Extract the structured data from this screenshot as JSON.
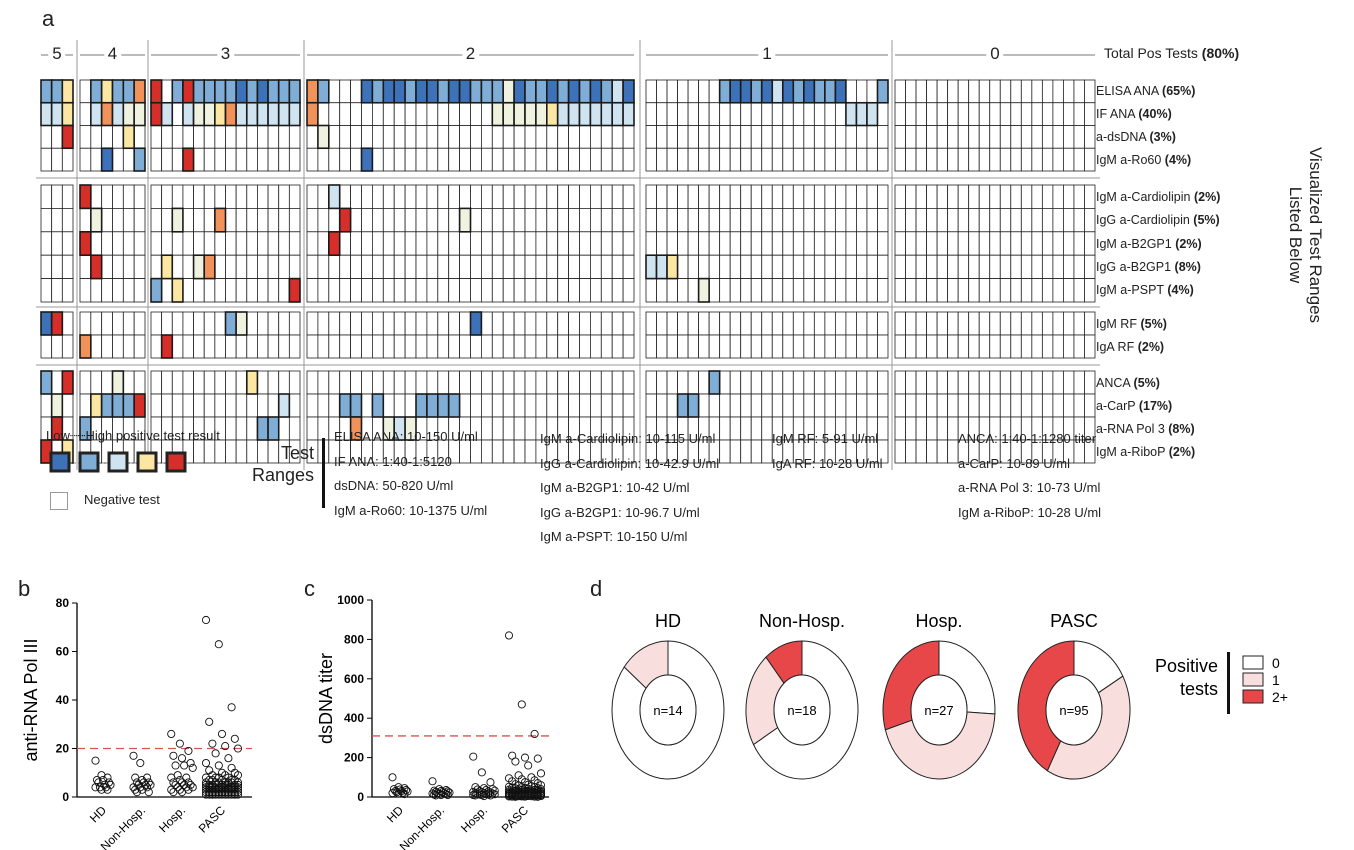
{
  "panel_labels": {
    "a": "a",
    "b": "b",
    "c": "c",
    "d": "d"
  },
  "heatmap": {
    "group_labels": [
      "5",
      "4",
      "3",
      "2",
      "1",
      "0"
    ],
    "total_label": "Total Pos Tests",
    "total_pct": "(80%)",
    "side_title_1": "Visualized Test Ranges",
    "side_title_2": "Listed Below",
    "rows": [
      {
        "name": "ELISA ANA",
        "pct": "(65%)"
      },
      {
        "name": "IF ANA",
        "pct": "(40%)"
      },
      {
        "name": "a-dsDNA",
        "pct": "(3%)"
      },
      {
        "name": "IgM a-Ro60",
        "pct": "(4%)"
      },
      {
        "name": "IgM a-Cardiolipin",
        "pct": "(2%)"
      },
      {
        "name": "IgG a-Cardiolipin",
        "pct": "(5%)"
      },
      {
        "name": "IgM a-B2GP1",
        "pct": "(2%)"
      },
      {
        "name": "IgG a-B2GP1",
        "pct": "(8%)"
      },
      {
        "name": "IgM a-PSPT",
        "pct": "(4%)"
      },
      {
        "name": "IgM RF",
        "pct": "(5%)"
      },
      {
        "name": "IgA RF",
        "pct": "(2%)"
      },
      {
        "name": "ANCA",
        "pct": "(5%)"
      },
      {
        "name": "a-CarP",
        "pct": "(17%)"
      },
      {
        "name": "a-RNA Pol 3",
        "pct": "(8%)"
      },
      {
        "name": "IgM a-RiboP",
        "pct": "(2%)"
      }
    ],
    "group_columns": [
      3,
      6,
      14,
      30,
      23,
      19
    ],
    "level_colors": {
      "1": "#3d72b8",
      "2": "#7fadd6",
      "3": "#cfe3f1",
      "3.5": "#eef2df",
      "4": "#fbe7a1",
      "4.5": "#f0925a",
      "5": "#d62f2a"
    },
    "cells": [
      [
        0,
        0,
        2
      ],
      [
        0,
        1,
        2
      ],
      [
        0,
        2,
        4
      ],
      [
        0,
        4,
        2
      ],
      [
        0,
        5,
        4
      ],
      [
        0,
        6,
        2
      ],
      [
        0,
        7,
        2
      ],
      [
        0,
        8,
        4.5
      ],
      [
        0,
        9,
        5
      ],
      [
        0,
        11,
        2
      ],
      [
        0,
        12,
        5
      ],
      [
        0,
        13,
        2
      ],
      [
        0,
        14,
        2
      ],
      [
        0,
        15,
        2
      ],
      [
        0,
        16,
        2
      ],
      [
        0,
        17,
        1
      ],
      [
        0,
        18,
        2
      ],
      [
        0,
        19,
        1
      ],
      [
        0,
        20,
        2
      ],
      [
        0,
        21,
        2
      ],
      [
        0,
        22,
        2
      ],
      [
        0,
        23,
        4.5
      ],
      [
        0,
        24,
        2
      ],
      [
        0,
        28,
        1
      ],
      [
        0,
        29,
        2
      ],
      [
        0,
        30,
        1
      ],
      [
        0,
        31,
        1
      ],
      [
        0,
        32,
        2
      ],
      [
        0,
        33,
        1
      ],
      [
        0,
        34,
        1
      ],
      [
        0,
        35,
        2
      ],
      [
        0,
        36,
        1
      ],
      [
        0,
        37,
        1
      ],
      [
        0,
        38,
        2
      ],
      [
        0,
        39,
        2
      ],
      [
        0,
        40,
        2
      ],
      [
        0,
        41,
        3.5
      ],
      [
        0,
        42,
        1
      ],
      [
        0,
        43,
        2
      ],
      [
        0,
        44,
        2
      ],
      [
        0,
        45,
        1
      ],
      [
        0,
        46,
        2
      ],
      [
        0,
        47,
        1
      ],
      [
        0,
        48,
        2
      ],
      [
        0,
        49,
        1
      ],
      [
        0,
        50,
        2
      ],
      [
        0,
        51,
        3
      ],
      [
        0,
        52,
        1
      ],
      [
        0,
        60,
        2
      ],
      [
        0,
        61,
        1
      ],
      [
        0,
        62,
        1
      ],
      [
        0,
        63,
        2
      ],
      [
        0,
        64,
        1
      ],
      [
        0,
        65,
        3
      ],
      [
        0,
        66,
        1
      ],
      [
        0,
        67,
        2
      ],
      [
        0,
        68,
        1
      ],
      [
        0,
        69,
        2
      ],
      [
        0,
        70,
        2
      ],
      [
        0,
        71,
        1
      ],
      [
        0,
        75,
        2
      ],
      [
        1,
        0,
        3
      ],
      [
        1,
        1,
        3
      ],
      [
        1,
        2,
        4
      ],
      [
        1,
        4,
        3
      ],
      [
        1,
        5,
        4.5
      ],
      [
        1,
        6,
        3
      ],
      [
        1,
        7,
        3.5
      ],
      [
        1,
        8,
        3.5
      ],
      [
        1,
        9,
        5
      ],
      [
        1,
        10,
        3
      ],
      [
        1,
        12,
        3
      ],
      [
        1,
        13,
        3.5
      ],
      [
        1,
        14,
        3.5
      ],
      [
        1,
        15,
        4
      ],
      [
        1,
        16,
        4.5
      ],
      [
        1,
        17,
        3
      ],
      [
        1,
        18,
        3
      ],
      [
        1,
        19,
        3
      ],
      [
        1,
        20,
        3
      ],
      [
        1,
        21,
        3
      ],
      [
        1,
        22,
        3
      ],
      [
        1,
        23,
        4.5
      ],
      [
        1,
        40,
        3.5
      ],
      [
        1,
        41,
        3.5
      ],
      [
        1,
        42,
        3.5
      ],
      [
        1,
        43,
        3.5
      ],
      [
        1,
        44,
        3.5
      ],
      [
        1,
        45,
        4
      ],
      [
        1,
        46,
        3
      ],
      [
        1,
        47,
        3
      ],
      [
        1,
        48,
        3
      ],
      [
        1,
        49,
        3
      ],
      [
        1,
        50,
        3
      ],
      [
        1,
        51,
        3
      ],
      [
        1,
        52,
        3
      ],
      [
        1,
        72,
        3
      ],
      [
        1,
        73,
        3
      ],
      [
        1,
        74,
        3
      ],
      [
        2,
        2,
        5
      ],
      [
        2,
        7,
        4
      ],
      [
        2,
        24,
        3.5
      ],
      [
        3,
        5,
        1
      ],
      [
        3,
        8,
        2
      ],
      [
        3,
        12,
        5
      ],
      [
        3,
        28,
        1
      ],
      [
        4,
        3,
        5
      ],
      [
        4,
        25,
        3
      ],
      [
        5,
        4,
        3.5
      ],
      [
        5,
        11,
        3.5
      ],
      [
        5,
        15,
        4.5
      ],
      [
        5,
        26,
        5
      ],
      [
        5,
        37,
        3.5
      ],
      [
        6,
        3,
        5
      ],
      [
        6,
        25,
        5
      ],
      [
        7,
        4,
        5
      ],
      [
        7,
        10,
        4
      ],
      [
        7,
        13,
        3.5
      ],
      [
        7,
        14,
        4.5
      ],
      [
        7,
        53,
        3
      ],
      [
        7,
        54,
        3
      ],
      [
        7,
        55,
        4
      ],
      [
        8,
        9,
        2
      ],
      [
        8,
        11,
        4
      ],
      [
        8,
        22,
        5
      ],
      [
        8,
        58,
        3.5
      ],
      [
        9,
        0,
        1
      ],
      [
        9,
        1,
        5
      ],
      [
        9,
        16,
        2
      ],
      [
        9,
        17,
        3.5
      ],
      [
        9,
        38,
        1
      ],
      [
        10,
        3,
        4.5
      ],
      [
        10,
        10,
        5
      ],
      [
        11,
        0,
        2
      ],
      [
        11,
        2,
        5
      ],
      [
        11,
        6,
        3.5
      ],
      [
        11,
        18,
        4
      ],
      [
        11,
        59,
        2
      ],
      [
        12,
        1,
        3.5
      ],
      [
        12,
        4,
        4
      ],
      [
        12,
        5,
        2
      ],
      [
        12,
        6,
        2
      ],
      [
        12,
        7,
        2
      ],
      [
        12,
        8,
        5
      ],
      [
        12,
        21,
        3
      ],
      [
        12,
        26,
        2
      ],
      [
        12,
        27,
        2
      ],
      [
        12,
        29,
        2
      ],
      [
        12,
        33,
        2
      ],
      [
        12,
        34,
        2
      ],
      [
        12,
        35,
        2
      ],
      [
        12,
        36,
        2
      ],
      [
        12,
        56,
        2
      ],
      [
        12,
        57,
        2
      ],
      [
        13,
        1,
        5
      ],
      [
        13,
        3,
        2
      ],
      [
        13,
        19,
        2
      ],
      [
        13,
        20,
        2
      ],
      [
        13,
        27,
        4.5
      ],
      [
        13,
        30,
        3.5
      ],
      [
        13,
        31,
        3
      ],
      [
        13,
        32,
        3.5
      ],
      [
        14,
        0,
        5
      ],
      [
        14,
        2,
        4
      ]
    ]
  },
  "legend": {
    "scale_label": "Low┈┈High positive test result",
    "scale_levels": [
      "1",
      "2",
      "3",
      "4",
      "5"
    ],
    "negative_label": "Negative test",
    "ranges_title_1": "Test",
    "ranges_title_2": "Ranges",
    "ranges": [
      [
        "ELISA ANA: 10-150 U/ml",
        "IF ANA: 1:40-1:5120",
        "dsDNA: 50-820 U/ml",
        "IgM a-Ro60: 10-1375 U/ml"
      ],
      [
        "IgM a-Cardiolipin: 10-115 U/ml",
        "IgG a-Cardiolipin: 10-42.9 U/ml",
        "IgM a-B2GP1: 10-42 U/ml",
        "IgG a-B2GP1: 10-96.7 U/ml",
        "IgM a-PSPT: 10-150 U/ml"
      ],
      [
        "IgM RF: 5-91 U/ml",
        "IgA RF: 10-28 U/ml"
      ],
      [
        "ANCA: 1:40-1:1280 titer",
        "a-CarP: 10-89 U/ml",
        "a-RNA Pol 3: 10-73 U/ml",
        "IgM a-RiboP: 10-28 U/ml"
      ]
    ]
  },
  "chart_data": [
    {
      "type": "scatter",
      "panel": "b",
      "ylabel": "anti-RNA Pol III",
      "ylim": [
        0,
        80
      ],
      "yticks": [
        "0",
        "20",
        "40",
        "60",
        "80"
      ],
      "cutoff": 20,
      "cutoff_color": "#d9534f",
      "categories": [
        "HD",
        "Non-Hosp.",
        "Hosp.",
        "PASC"
      ],
      "values": [
        [
          15,
          9,
          8,
          7,
          7,
          6,
          6,
          5,
          5,
          4,
          4,
          4,
          3,
          3
        ],
        [
          17,
          14,
          8,
          8,
          7,
          6,
          6,
          6,
          5,
          5,
          5,
          4,
          4,
          4,
          3,
          3,
          2,
          2
        ],
        [
          26,
          22,
          19,
          17,
          16,
          14,
          13,
          13,
          12,
          9,
          8,
          8,
          7,
          6,
          6,
          6,
          5,
          5,
          5,
          4,
          4,
          4,
          3,
          3,
          3,
          2,
          2
        ],
        [
          73,
          63,
          37,
          31,
          26,
          24,
          22,
          21,
          20,
          18,
          16,
          14,
          13,
          12,
          11,
          10,
          10,
          9,
          9,
          9,
          8,
          8,
          8,
          8,
          7,
          7,
          7,
          7,
          7,
          6,
          6,
          6,
          6,
          6,
          6,
          6,
          5,
          5,
          5,
          5,
          5,
          5,
          5,
          5,
          5,
          4,
          4,
          4,
          4,
          4,
          4,
          4,
          4,
          4,
          4,
          4,
          3,
          3,
          3,
          3,
          3,
          3,
          3,
          3,
          3,
          3,
          3,
          3,
          3,
          2,
          2,
          2,
          2,
          2,
          2,
          2,
          2,
          2,
          2,
          2,
          2,
          2,
          1,
          1,
          1,
          1,
          1,
          1,
          1,
          1,
          1,
          1,
          1,
          1,
          1
        ]
      ]
    },
    {
      "type": "scatter",
      "panel": "c",
      "ylabel": "dsDNA titer",
      "ylim": [
        0,
        1000
      ],
      "yticks": [
        "0",
        "200",
        "400",
        "600",
        "800",
        "1000"
      ],
      "cutoff": 310,
      "cutoff_color": "#d9534f",
      "categories": [
        "HD",
        "Non-Hosp.",
        "Hosp.",
        "PASC"
      ],
      "values": [
        [
          100,
          50,
          45,
          40,
          38,
          35,
          30,
          30,
          28,
          25,
          22,
          20,
          18,
          15
        ],
        [
          80,
          40,
          35,
          32,
          30,
          28,
          26,
          25,
          22,
          20,
          20,
          18,
          16,
          15,
          12,
          10,
          10,
          8
        ],
        [
          205,
          125,
          75,
          50,
          45,
          40,
          38,
          35,
          32,
          30,
          28,
          26,
          25,
          22,
          20,
          20,
          18,
          16,
          15,
          14,
          12,
          12,
          10,
          10,
          8,
          8,
          5
        ],
        [
          820,
          470,
          320,
          210,
          200,
          195,
          180,
          160,
          120,
          110,
          100,
          95,
          90,
          85,
          80,
          75,
          70,
          65,
          62,
          60,
          58,
          55,
          52,
          50,
          50,
          48,
          46,
          45,
          44,
          42,
          40,
          40,
          38,
          37,
          36,
          35,
          34,
          33,
          32,
          31,
          30,
          30,
          29,
          28,
          28,
          27,
          26,
          25,
          25,
          24,
          24,
          23,
          22,
          22,
          21,
          20,
          20,
          20,
          19,
          18,
          18,
          17,
          16,
          16,
          15,
          15,
          14,
          14,
          13,
          12,
          12,
          11,
          10,
          10,
          10,
          9,
          9,
          8,
          8,
          7,
          7,
          6,
          6,
          5,
          5,
          5,
          4,
          4,
          3,
          3,
          2,
          2,
          2,
          1,
          1
        ]
      ]
    },
    {
      "type": "pie",
      "panel": "d",
      "legend_title_1": "Positive",
      "legend_title_2": "tests",
      "slice_labels": [
        "0",
        "1",
        "2+"
      ],
      "colors": [
        "#ffffff",
        "#f9dede",
        "#e8474a"
      ],
      "groups": [
        {
          "name": "HD",
          "n_label": "n=14",
          "values": [
            12,
            2,
            0
          ]
        },
        {
          "name": "Non-Hosp.",
          "n_label": "n=18",
          "values": [
            12,
            4,
            2
          ]
        },
        {
          "name": "Hosp.",
          "n_label": "n=27",
          "values": [
            7,
            12,
            8
          ]
        },
        {
          "name": "PASC",
          "n_label": "n=95",
          "values": [
            16,
            39,
            40
          ]
        }
      ]
    }
  ]
}
